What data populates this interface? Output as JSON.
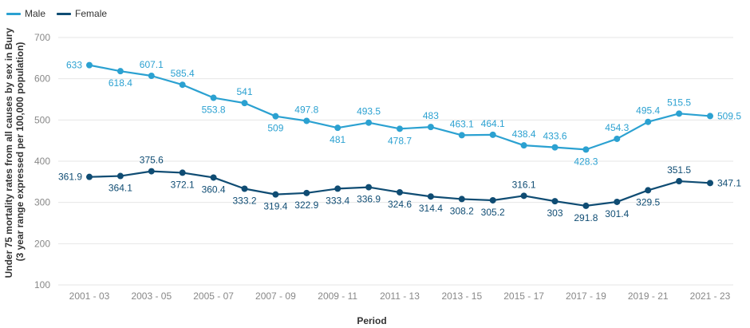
{
  "chart_data": {
    "type": "line",
    "title": "",
    "xlabel": "Period",
    "ylabel_lines": [
      "Under 75 mortality rates from all causes by sex in Bury",
      "(3 year range expressed per 100,000 population)"
    ],
    "ylim": [
      100,
      700
    ],
    "yticks": [
      "100",
      "200",
      "300",
      "400",
      "500",
      "600",
      "700"
    ],
    "grid": true,
    "legend_position": "top-left",
    "x": [
      "2001 - 03",
      "2002 - 04",
      "2003 - 05",
      "2004 - 06",
      "2005 - 07",
      "2006 - 08",
      "2007 - 09",
      "2008 - 10",
      "2009 - 11",
      "2010 - 12",
      "2011 - 13",
      "2012 - 14",
      "2013 - 15",
      "2014 - 16",
      "2015 - 17",
      "2016 - 18",
      "2017 - 19",
      "2018 - 20",
      "2019 - 21",
      "2020 - 22",
      "2021 - 23"
    ],
    "xticks_shown": [
      "2001 - 03",
      "2003 - 05",
      "2005 - 07",
      "2007 - 09",
      "2009 - 11",
      "2011 - 13",
      "2013 - 15",
      "2015 - 17",
      "2017 - 19",
      "2019 - 21",
      "2021 - 23"
    ],
    "series": [
      {
        "name": "Male",
        "color": "#2ba1d1",
        "values": [
          633,
          618.4,
          607.1,
          585.4,
          553.8,
          541,
          509,
          497.8,
          481,
          493.5,
          478.7,
          483,
          463.1,
          464.1,
          438.4,
          433.6,
          428.3,
          454.3,
          495.4,
          515.5,
          509.5
        ],
        "labels": [
          "633",
          "618.4",
          "607.1",
          "585.4",
          "553.8",
          "541",
          "509",
          "497.8",
          "481",
          "493.5",
          "478.7",
          "483",
          "463.1",
          "464.1",
          "438.4",
          "433.6",
          "428.3",
          "454.3",
          "495.4",
          "515.5",
          "509.5"
        ],
        "label_pos": [
          "left",
          "below",
          "above",
          "above",
          "below",
          "above",
          "below",
          "above",
          "below",
          "above",
          "below",
          "above",
          "above",
          "above",
          "above",
          "above",
          "below",
          "above",
          "above",
          "above",
          "right"
        ]
      },
      {
        "name": "Female",
        "color": "#0f4c73",
        "values": [
          361.9,
          364.1,
          375.6,
          372.1,
          360.4,
          333.2,
          319.4,
          322.9,
          333.4,
          336.9,
          324.6,
          314.4,
          308.2,
          305.2,
          316.1,
          303,
          291.8,
          301.4,
          329.5,
          351.5,
          347.1
        ],
        "labels": [
          "361.9",
          "364.1",
          "375.6",
          "372.1",
          "360.4",
          "333.2",
          "319.4",
          "322.9",
          "333.4",
          "336.9",
          "324.6",
          "314.4",
          "308.2",
          "305.2",
          "316.1",
          "303",
          "291.8",
          "301.4",
          "329.5",
          "351.5",
          "347.1"
        ],
        "label_pos": [
          "left",
          "below",
          "above",
          "below",
          "below",
          "below",
          "below",
          "below",
          "below",
          "below",
          "below",
          "below",
          "below",
          "below",
          "above",
          "below",
          "below",
          "below",
          "below",
          "above",
          "right"
        ]
      }
    ]
  },
  "colors": {
    "axis_text": "#888888",
    "title_text": "#333333",
    "grid": "#e6e6e6"
  }
}
